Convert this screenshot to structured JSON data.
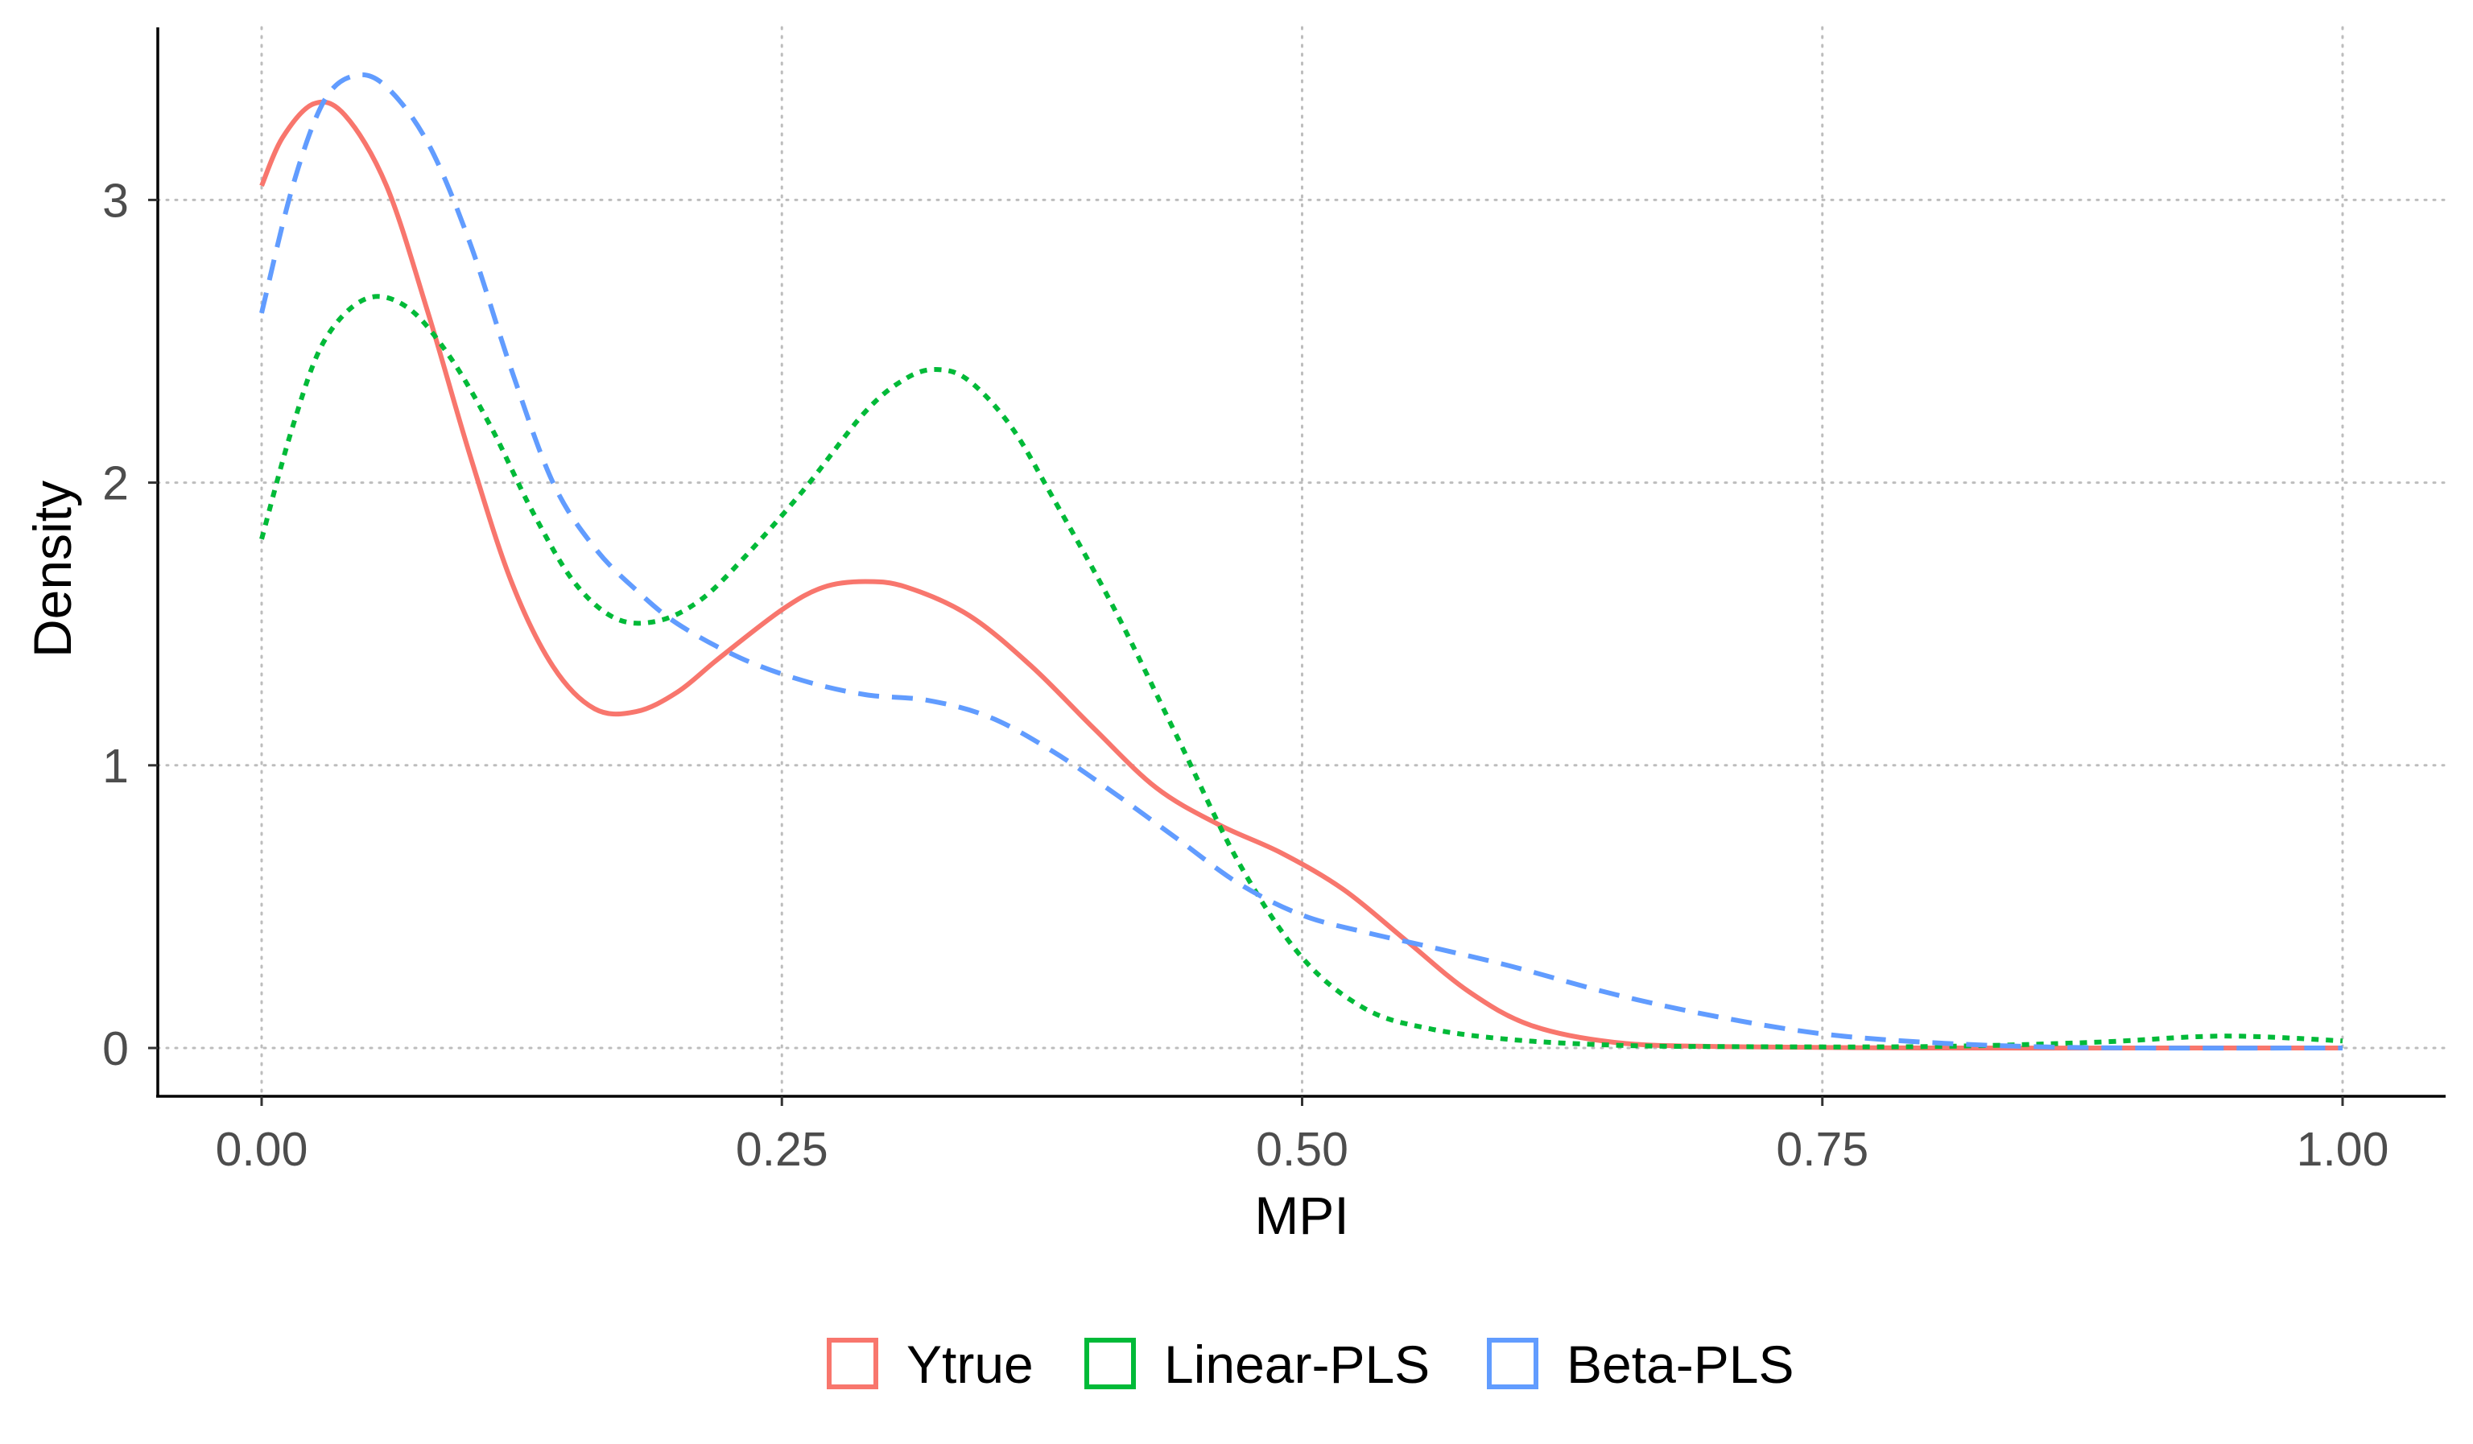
{
  "chart_data": {
    "type": "line",
    "title": "",
    "xlabel": "MPI",
    "ylabel": "Density",
    "xlim": [
      0,
      1
    ],
    "ylim": [
      0,
      3.45
    ],
    "x_ticks": [
      0,
      0.25,
      0.5,
      0.75,
      1
    ],
    "x_tick_labels": [
      "0.00",
      "0.25",
      "0.50",
      "0.75",
      "1.00"
    ],
    "y_ticks": [
      0,
      1,
      2,
      3
    ],
    "y_tick_labels": [
      "0",
      "1",
      "2",
      "3"
    ],
    "grid": true,
    "legend_position": "bottom",
    "series": [
      {
        "name": "Ytrue",
        "color": "#F8766D",
        "line_style": "solid",
        "points": [
          [
            0,
            3.05
          ],
          [
            0.01,
            3.22
          ],
          [
            0.025,
            3.34
          ],
          [
            0.04,
            3.3
          ],
          [
            0.06,
            3.05
          ],
          [
            0.08,
            2.6
          ],
          [
            0.1,
            2.1
          ],
          [
            0.12,
            1.65
          ],
          [
            0.14,
            1.35
          ],
          [
            0.16,
            1.2
          ],
          [
            0.18,
            1.19
          ],
          [
            0.2,
            1.26
          ],
          [
            0.22,
            1.38
          ],
          [
            0.25,
            1.55
          ],
          [
            0.27,
            1.63
          ],
          [
            0.29,
            1.65
          ],
          [
            0.31,
            1.63
          ],
          [
            0.34,
            1.53
          ],
          [
            0.37,
            1.35
          ],
          [
            0.4,
            1.13
          ],
          [
            0.43,
            0.92
          ],
          [
            0.46,
            0.79
          ],
          [
            0.49,
            0.69
          ],
          [
            0.52,
            0.56
          ],
          [
            0.55,
            0.38
          ],
          [
            0.58,
            0.2
          ],
          [
            0.61,
            0.08
          ],
          [
            0.65,
            0.02
          ],
          [
            0.7,
            0.005
          ],
          [
            0.8,
            0
          ],
          [
            0.9,
            0
          ],
          [
            1.0,
            0
          ]
        ]
      },
      {
        "name": "Linear-PLS",
        "color": "#00BA38",
        "line_style": "dotted",
        "points": [
          [
            0,
            1.8
          ],
          [
            0.015,
            2.2
          ],
          [
            0.03,
            2.5
          ],
          [
            0.05,
            2.65
          ],
          [
            0.07,
            2.62
          ],
          [
            0.09,
            2.45
          ],
          [
            0.11,
            2.2
          ],
          [
            0.13,
            1.9
          ],
          [
            0.15,
            1.65
          ],
          [
            0.17,
            1.52
          ],
          [
            0.19,
            1.51
          ],
          [
            0.21,
            1.58
          ],
          [
            0.23,
            1.72
          ],
          [
            0.26,
            1.97
          ],
          [
            0.29,
            2.25
          ],
          [
            0.31,
            2.37
          ],
          [
            0.325,
            2.4
          ],
          [
            0.34,
            2.36
          ],
          [
            0.36,
            2.2
          ],
          [
            0.38,
            1.95
          ],
          [
            0.41,
            1.55
          ],
          [
            0.44,
            1.1
          ],
          [
            0.47,
            0.65
          ],
          [
            0.5,
            0.32
          ],
          [
            0.53,
            0.14
          ],
          [
            0.56,
            0.07
          ],
          [
            0.6,
            0.03
          ],
          [
            0.65,
            0.01
          ],
          [
            0.7,
            0.005
          ],
          [
            0.8,
            0.005
          ],
          [
            0.88,
            0.02
          ],
          [
            0.93,
            0.04
          ],
          [
            0.96,
            0.04
          ],
          [
            1.0,
            0.025
          ]
        ]
      },
      {
        "name": "Beta-PLS",
        "color": "#619CFF",
        "line_style": "dashed",
        "points": [
          [
            0,
            2.6
          ],
          [
            0.015,
            3.05
          ],
          [
            0.03,
            3.35
          ],
          [
            0.045,
            3.44
          ],
          [
            0.06,
            3.4
          ],
          [
            0.08,
            3.2
          ],
          [
            0.1,
            2.85
          ],
          [
            0.12,
            2.4
          ],
          [
            0.14,
            2.0
          ],
          [
            0.16,
            1.77
          ],
          [
            0.18,
            1.62
          ],
          [
            0.2,
            1.5
          ],
          [
            0.23,
            1.38
          ],
          [
            0.26,
            1.3
          ],
          [
            0.29,
            1.25
          ],
          [
            0.32,
            1.23
          ],
          [
            0.35,
            1.17
          ],
          [
            0.38,
            1.05
          ],
          [
            0.41,
            0.9
          ],
          [
            0.44,
            0.74
          ],
          [
            0.47,
            0.58
          ],
          [
            0.5,
            0.47
          ],
          [
            0.53,
            0.41
          ],
          [
            0.56,
            0.36
          ],
          [
            0.6,
            0.29
          ],
          [
            0.65,
            0.19
          ],
          [
            0.7,
            0.11
          ],
          [
            0.75,
            0.05
          ],
          [
            0.8,
            0.02
          ],
          [
            0.85,
            0.005
          ],
          [
            0.9,
            0
          ],
          [
            1.0,
            0
          ]
        ]
      }
    ]
  }
}
